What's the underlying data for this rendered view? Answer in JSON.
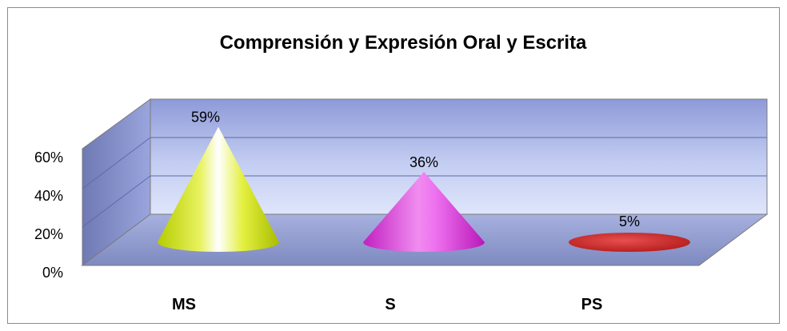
{
  "chart_data": {
    "type": "bar",
    "style": "3d-cone",
    "title": "Comprensión y Expresión Oral y Escrita",
    "categories": [
      "MS",
      "S",
      "PS"
    ],
    "values": [
      59,
      36,
      5
    ],
    "data_labels": [
      "59%",
      "36%",
      "5%"
    ],
    "y_ticks": [
      "0%",
      "20%",
      "40%",
      "60%"
    ],
    "ylim": [
      0,
      60
    ],
    "grid": true,
    "legend": "none",
    "colors": {
      "MS": "#c8e000",
      "S": "#e040e0",
      "PS": "#d02a2a",
      "wall": "#aab6e8",
      "floor": "#8e9bcf"
    }
  }
}
